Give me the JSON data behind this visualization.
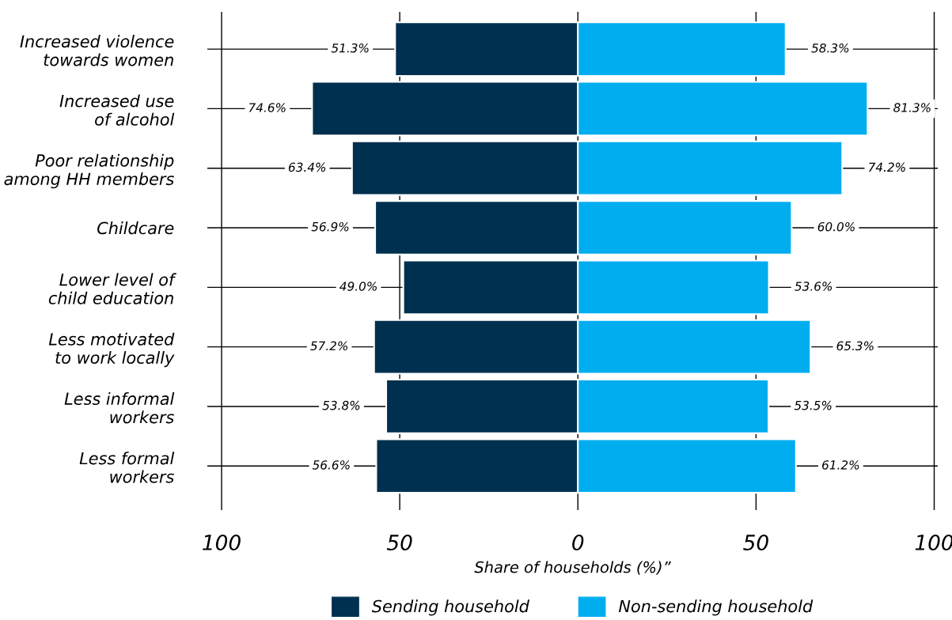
{
  "chart_data": {
    "type": "bar",
    "orientation": "horizontal",
    "xlabel": "Share of households (%)”",
    "categories": [
      "Increased violence\ntowards women",
      "Increased use\nof alcohol",
      "Poor relationship\namong HH members",
      "Childcare",
      "Lower level of\nchild education",
      "Less motivated\nto work locally",
      "Less informal\nworkers",
      "Less formal\nworkers"
    ],
    "series": [
      {
        "name": "Sending household",
        "color": "#00304f",
        "values": [
          51.3,
          74.6,
          63.4,
          56.9,
          49.0,
          57.2,
          53.8,
          56.6
        ],
        "base": [
          -51.3,
          -74.6,
          -63.4,
          -56.9,
          -49.0,
          -57.2,
          -53.8,
          -56.6
        ],
        "value_labels": [
          "51.3%",
          "74.6%",
          "63.4%",
          "56.9%",
          "49.0%",
          "57.2%",
          "53.8%",
          "56.6%"
        ]
      },
      {
        "name": "Non-sending household",
        "color": "#00adef",
        "values": [
          58.3,
          81.3,
          74.2,
          60.0,
          53.6,
          65.3,
          53.5,
          61.2
        ],
        "value_labels": [
          "58.3%",
          "81.3%",
          "74.2%",
          "60.0%",
          "53.6%",
          "65.3%",
          "53.5%",
          "61.2%"
        ]
      }
    ],
    "xlim": [
      -104,
      101
    ],
    "xticks": [
      {
        "value": -100,
        "label": "100"
      },
      {
        "value": -50,
        "label": "50"
      },
      0,
      50,
      100
    ],
    "grid": true,
    "legend": "bottom"
  }
}
